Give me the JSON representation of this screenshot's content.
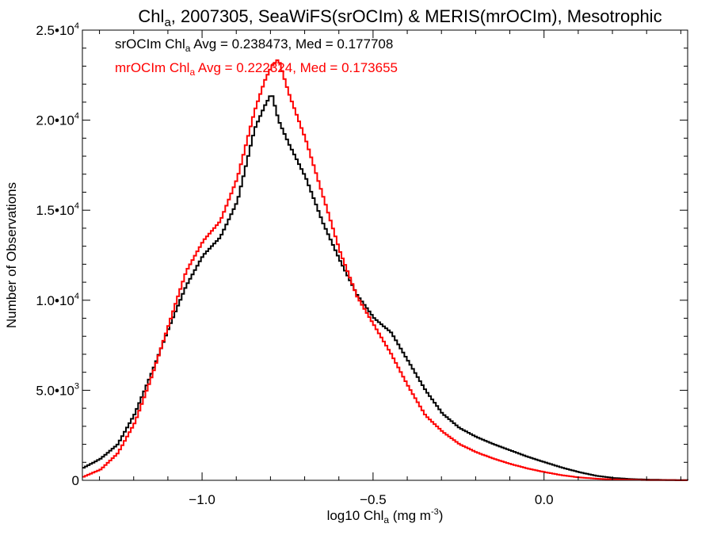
{
  "chart_data": {
    "type": "line",
    "title": {
      "pre": "Chl",
      "sub": "a",
      "post": ", 2007305, SeaWiFS(srOCIm) & MERIS(mrOCIm), Mesotrophic"
    },
    "xlabel": {
      "pre": "log10 Chl",
      "sub": "a",
      "post": " (mg m",
      "sup": "-3",
      "end": ")"
    },
    "ylabel": "Number of Observations",
    "xlim": [
      -1.35,
      0.42
    ],
    "ylim": [
      0,
      25000
    ],
    "x_ticks": [
      {
        "value": -1.0,
        "label": "−1.0"
      },
      {
        "value": -0.5,
        "label": "−0.5"
      },
      {
        "value": 0.0,
        "label": "0.0"
      }
    ],
    "y_ticks": [
      {
        "value": 0,
        "label": "0"
      },
      {
        "value": 5000,
        "mant": "5.0•10",
        "exp": "3"
      },
      {
        "value": 10000,
        "mant": "1.0•10",
        "exp": "4"
      },
      {
        "value": 15000,
        "mant": "1.5•10",
        "exp": "4"
      },
      {
        "value": 20000,
        "mant": "2.0•10",
        "exp": "4"
      },
      {
        "value": 25000,
        "mant": "2.5•10",
        "exp": "4"
      }
    ],
    "legend": [
      {
        "pre": "srOCIm Chl",
        "sub": "a",
        "post": " Avg = 0.238473, Med = 0.177708",
        "color": "#000000"
      },
      {
        "pre": "mrOCIm Chl",
        "sub": "a",
        "post": " Avg = 0.222324, Med = 0.173655",
        "color": "#ff0000"
      }
    ],
    "series": [
      {
        "color": "#000000",
        "x": [
          -1.35,
          -1.3,
          -1.25,
          -1.2,
          -1.15,
          -1.1,
          -1.05,
          -1.0,
          -0.95,
          -0.9,
          -0.85,
          -0.82,
          -0.8,
          -0.78,
          -0.75,
          -0.7,
          -0.65,
          -0.6,
          -0.55,
          -0.5,
          -0.45,
          -0.4,
          -0.35,
          -0.3,
          -0.25,
          -0.2,
          -0.15,
          -0.1,
          -0.05,
          0.0,
          0.05,
          0.1,
          0.15,
          0.2,
          0.25,
          0.3,
          0.35,
          0.42
        ],
        "y": [
          700,
          1200,
          2000,
          3700,
          6000,
          8500,
          10800,
          12500,
          13500,
          15500,
          19500,
          20800,
          21500,
          20000,
          18700,
          16800,
          14300,
          12200,
          10300,
          9000,
          8200,
          6600,
          5000,
          3700,
          2900,
          2400,
          2000,
          1650,
          1300,
          1000,
          700,
          450,
          250,
          130,
          70,
          40,
          20,
          10
        ]
      },
      {
        "color": "#ff0000",
        "x": [
          -1.35,
          -1.3,
          -1.25,
          -1.2,
          -1.15,
          -1.1,
          -1.05,
          -1.0,
          -0.95,
          -0.9,
          -0.85,
          -0.82,
          -0.8,
          -0.78,
          -0.75,
          -0.7,
          -0.65,
          -0.6,
          -0.55,
          -0.5,
          -0.45,
          -0.4,
          -0.35,
          -0.3,
          -0.25,
          -0.2,
          -0.15,
          -0.1,
          -0.05,
          0.0,
          0.05,
          0.1,
          0.15,
          0.2,
          0.25,
          0.3,
          0.35,
          0.42
        ],
        "y": [
          200,
          600,
          1500,
          3200,
          5800,
          8700,
          11600,
          13300,
          14400,
          16800,
          20500,
          22200,
          23000,
          23400,
          21500,
          18900,
          15800,
          12700,
          10200,
          8600,
          7000,
          5200,
          3600,
          2700,
          2000,
          1550,
          1200,
          900,
          650,
          450,
          280,
          160,
          90,
          50,
          30,
          15,
          8,
          5
        ]
      }
    ]
  }
}
